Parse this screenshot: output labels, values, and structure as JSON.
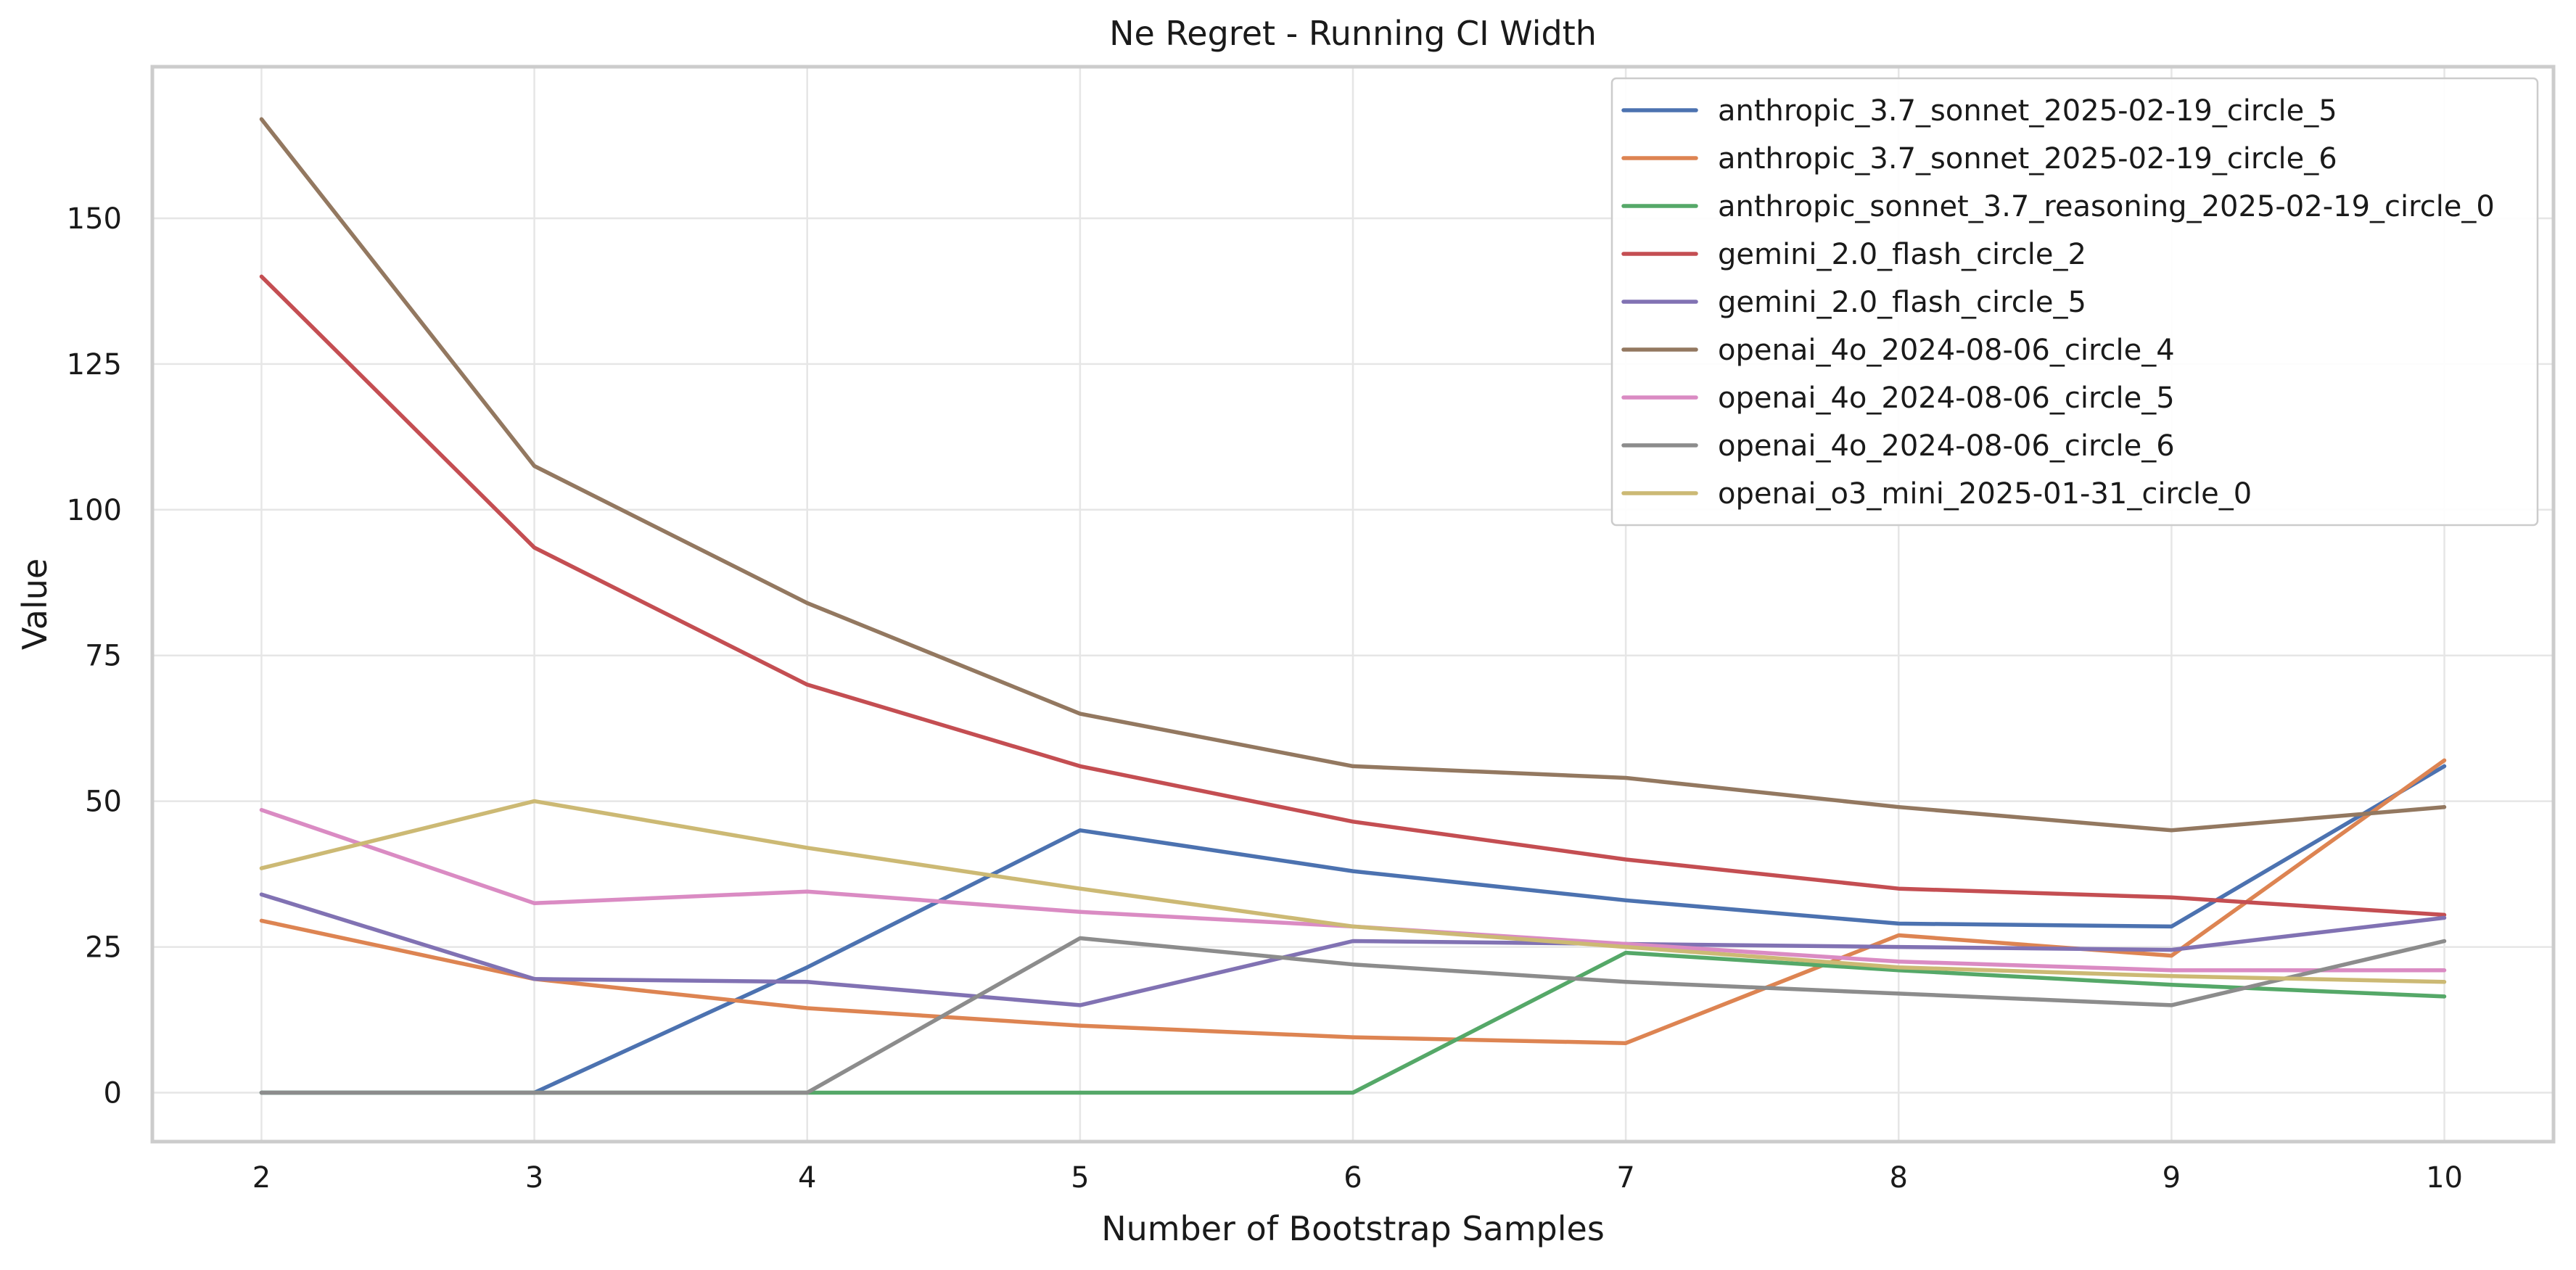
{
  "chart_data": {
    "type": "line",
    "title": "Ne Regret - Running CI Width",
    "xlabel": "Number of Bootstrap Samples",
    "ylabel": "Value",
    "x": [
      2,
      3,
      4,
      5,
      6,
      7,
      8,
      9,
      10
    ],
    "xlim": [
      1.6,
      10.4
    ],
    "ylim": [
      -8.4,
      176
    ],
    "xticks": [
      2,
      3,
      4,
      5,
      6,
      7,
      8,
      9,
      10
    ],
    "yticks": [
      0,
      25,
      50,
      75,
      100,
      125,
      150
    ],
    "grid": true,
    "legend_position": "upper right",
    "series": [
      {
        "name": "anthropic_3.7_sonnet_2025-02-19_circle_5",
        "color": "#4c72b0",
        "values": [
          0,
          0,
          21.5,
          45,
          38,
          33,
          29,
          28.5,
          56
        ]
      },
      {
        "name": "anthropic_3.7_sonnet_2025-02-19_circle_6",
        "color": "#dd8452",
        "values": [
          29.5,
          19.5,
          14.5,
          11.5,
          9.5,
          8.5,
          27,
          23.5,
          57
        ]
      },
      {
        "name": "anthropic_sonnet_3.7_reasoning_2025-02-19_circle_0",
        "color": "#55a868",
        "values": [
          0,
          0,
          0,
          0,
          0,
          24,
          21,
          18.5,
          16.5
        ]
      },
      {
        "name": "gemini_2.0_flash_circle_2",
        "color": "#c44e52",
        "values": [
          140,
          93.5,
          70,
          56,
          46.5,
          40,
          35,
          33.5,
          30.5
        ]
      },
      {
        "name": "gemini_2.0_flash_circle_5",
        "color": "#8172b3",
        "values": [
          34,
          19.5,
          19,
          15,
          26,
          25.5,
          25,
          24.5,
          30
        ]
      },
      {
        "name": "openai_4o_2024-08-06_circle_4",
        "color": "#937860",
        "values": [
          167,
          107.5,
          84,
          65,
          56,
          54,
          49,
          45,
          49
        ]
      },
      {
        "name": "openai_4o_2024-08-06_circle_5",
        "color": "#da8bc3",
        "values": [
          48.5,
          32.5,
          34.5,
          31,
          28.5,
          25.5,
          22.5,
          21,
          21
        ]
      },
      {
        "name": "openai_4o_2024-08-06_circle_6",
        "color": "#8c8c8c",
        "values": [
          0,
          0,
          0,
          26.5,
          22,
          19,
          17,
          15,
          26
        ]
      },
      {
        "name": "openai_o3_mini_2025-01-31_circle_0",
        "color": "#ccb974",
        "values": [
          38.5,
          50,
          42,
          35,
          28.5,
          25,
          21.5,
          20,
          19
        ]
      }
    ]
  }
}
